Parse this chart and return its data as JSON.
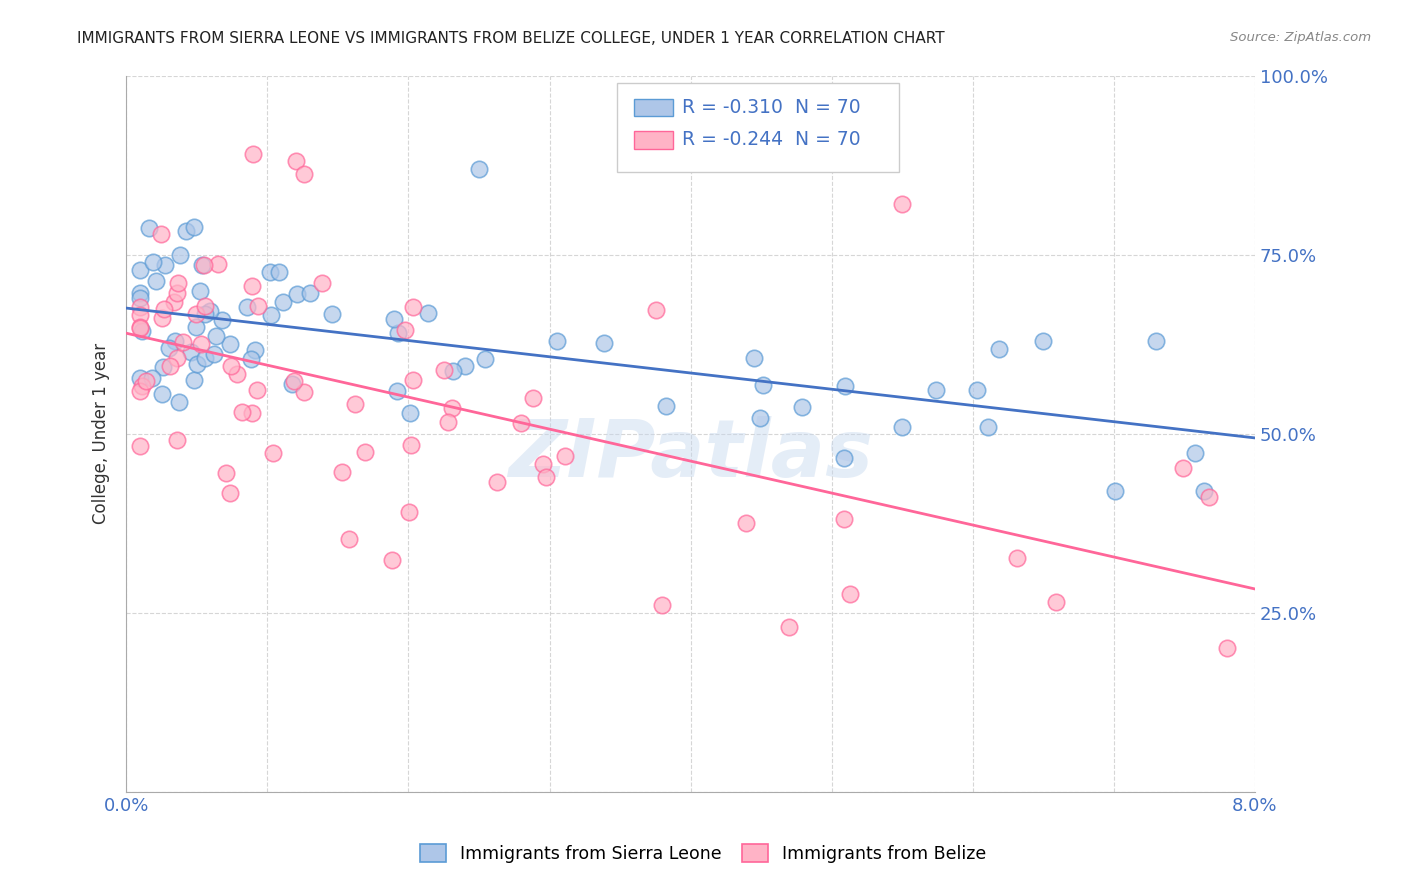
{
  "title": "IMMIGRANTS FROM SIERRA LEONE VS IMMIGRANTS FROM BELIZE COLLEGE, UNDER 1 YEAR CORRELATION CHART",
  "source": "Source: ZipAtlas.com",
  "ylabel": "College, Under 1 year",
  "legend_label1": "Immigrants from Sierra Leone",
  "legend_label2": "Immigrants from Belize",
  "color_blue_fill": "#AEC6E8",
  "color_blue_edge": "#5B9BD5",
  "color_pink_fill": "#FFB3C6",
  "color_pink_edge": "#FF6699",
  "line_blue": "#4472C4",
  "line_pink": "#FF6699",
  "text_blue": "#4472C4",
  "background": "#FFFFFF",
  "watermark": "ZIPatlas",
  "r1": "-0.310",
  "r2": "-0.244",
  "n1": "70",
  "n2": "70",
  "xlim": [
    0,
    0.08
  ],
  "ylim": [
    0,
    1.0
  ],
  "x_ticks": [
    0,
    0.01,
    0.02,
    0.03,
    0.04,
    0.05,
    0.06,
    0.07,
    0.08
  ],
  "y_ticks": [
    0,
    0.25,
    0.5,
    0.75,
    1.0
  ],
  "y_tick_labels": [
    "",
    "25.0%",
    "50.0%",
    "75.0%",
    "100.0%"
  ]
}
